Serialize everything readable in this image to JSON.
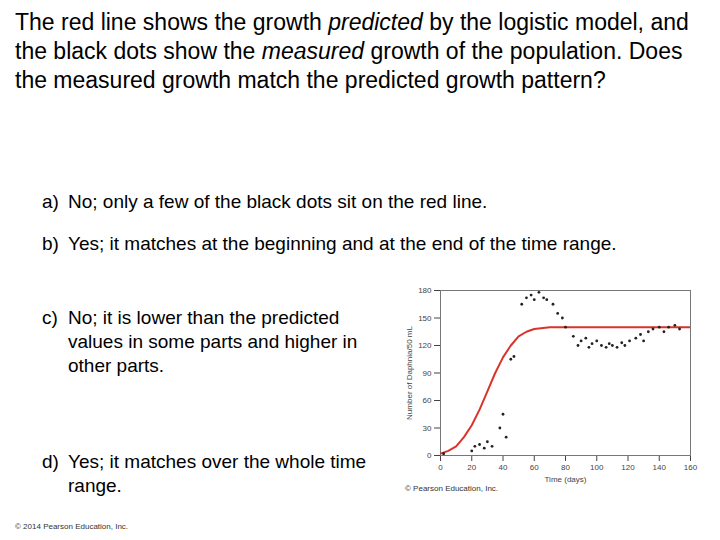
{
  "question": [
    {
      "text": "The red line shows the growth "
    },
    {
      "text": "predicted",
      "italic": true
    },
    {
      "text": " by the logistic model, and the black dots show the "
    },
    {
      "text": "measured",
      "italic": true
    },
    {
      "text": " growth of the population. Does the measured growth match the predicted growth pattern?"
    }
  ],
  "options": [
    {
      "label": "a)",
      "text": "No; only a few of the black dots sit on the red line."
    },
    {
      "label": "b)",
      "text": "Yes; it matches at the beginning and at the end of the time range."
    },
    {
      "label": "c)",
      "text": "No; it is lower than the predicted values in some parts and higher in other parts."
    },
    {
      "label": "d)",
      "text": "Yes; it matches over the whole time range."
    }
  ],
  "chart_caption": "© Pearson Education, Inc.",
  "footer": "© 2014 Pearson Education, Inc.",
  "chart_data": {
    "type": "line",
    "x_label": "Time (days)",
    "y_label": "Number of Daphnia/50 mL",
    "xlim": [
      0,
      160
    ],
    "ylim": [
      0,
      180
    ],
    "xticks": [
      0,
      20,
      40,
      60,
      80,
      100,
      120,
      140,
      160
    ],
    "yticks": [
      0,
      30,
      60,
      90,
      120,
      150,
      180
    ],
    "grid": false,
    "series": [
      {
        "type": "line",
        "color": "#d9342b",
        "line_style": "solid",
        "x": [
          0,
          5,
          10,
          15,
          20,
          25,
          30,
          35,
          40,
          45,
          50,
          55,
          60,
          70,
          80,
          100,
          120,
          140,
          160
        ],
        "values": [
          2,
          5,
          10,
          20,
          33,
          50,
          70,
          90,
          107,
          120,
          130,
          135,
          138,
          140,
          140,
          140,
          140,
          140,
          140
        ]
      },
      {
        "type": "scatter",
        "color": "#222222",
        "marker": "circle",
        "x": [
          2,
          20,
          22,
          25,
          28,
          30,
          33,
          38,
          40,
          42,
          45,
          47,
          52,
          55,
          58,
          60,
          63,
          66,
          68,
          72,
          75,
          78,
          80,
          85,
          88,
          90,
          93,
          95,
          97,
          100,
          103,
          106,
          108,
          110,
          113,
          116,
          118,
          121,
          125,
          128,
          130,
          133,
          136,
          140,
          143,
          146,
          150,
          153
        ],
        "values": [
          2,
          5,
          10,
          12,
          8,
          15,
          10,
          30,
          45,
          20,
          105,
          108,
          165,
          172,
          175,
          170,
          178,
          172,
          170,
          165,
          155,
          150,
          140,
          130,
          120,
          125,
          128,
          118,
          122,
          125,
          120,
          118,
          122,
          120,
          118,
          123,
          120,
          125,
          128,
          132,
          125,
          135,
          138,
          140,
          135,
          140,
          142,
          138
        ]
      }
    ]
  }
}
